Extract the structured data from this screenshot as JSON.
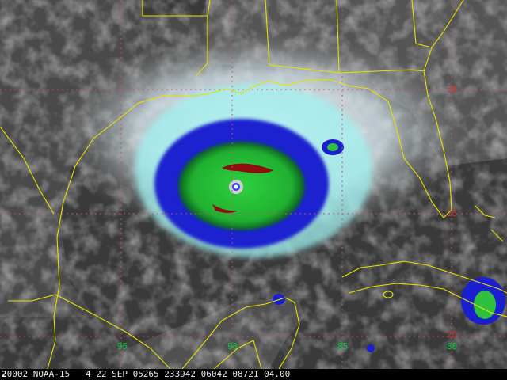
{
  "colors": {
    "coast": "#e8e000",
    "grid": "#c05070",
    "lon_label": "#00cc33",
    "lat_label": "#cc3333",
    "background": "#000000"
  },
  "grid": {
    "longitude_labels": [
      {
        "text": "95"
      },
      {
        "text": "90"
      },
      {
        "text": "85"
      },
      {
        "text": "80"
      }
    ],
    "latitude_labels": [
      {
        "text": "30"
      },
      {
        "text": "25"
      },
      {
        "text": "20"
      }
    ]
  },
  "storm": {
    "eye_legend_icon": "cloud-top-temperature-enhancement"
  },
  "info_bar": {
    "prefix": "2",
    "text": "0002 NOAA-15   4 22 SEP 05265 233942 06042 08721 04.00"
  }
}
